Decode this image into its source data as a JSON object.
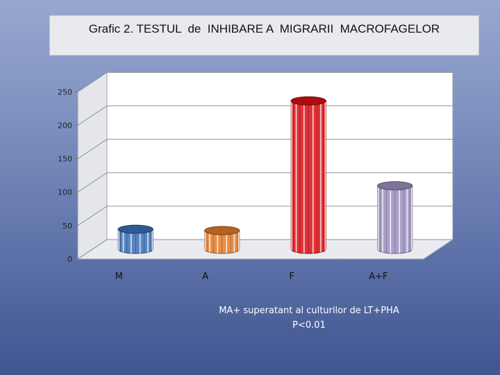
{
  "chart_data": {
    "type": "bar",
    "style": "3d-cylinder",
    "title": "Grafic 2. TESTUL  de  INHIBARE A  MIGRARII  MACROFAGELOR",
    "categories": [
      "M",
      "A",
      "F",
      "A+F"
    ],
    "values": [
      30,
      28,
      222,
      95
    ],
    "colors": [
      "#3b6fb6",
      "#e07b2a",
      "#d90f14",
      "#9b8fc0"
    ],
    "ylim": [
      0,
      250
    ],
    "yticks": [
      0,
      50,
      100,
      150,
      200,
      250
    ],
    "grid": true,
    "legend": "none"
  },
  "annotation": {
    "line1": "MA+ superatant al culturilor de LT+PHA",
    "line2": "P<0.01"
  }
}
